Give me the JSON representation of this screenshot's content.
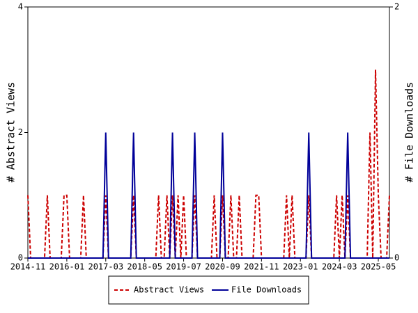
{
  "chart_data": {
    "type": "line",
    "categories": [
      "2014-11",
      null,
      null,
      null,
      null,
      null,
      null,
      null,
      null,
      null,
      null,
      null,
      null,
      null,
      "2016-01",
      null,
      null,
      null,
      null,
      null,
      null,
      null,
      null,
      null,
      null,
      null,
      null,
      null,
      "2017-03",
      null,
      null,
      null,
      null,
      null,
      null,
      null,
      null,
      null,
      null,
      null,
      null,
      null,
      "2018-05",
      null,
      null,
      null,
      null,
      null,
      null,
      null,
      null,
      null,
      null,
      null,
      null,
      null,
      "2019-07",
      null,
      null,
      null,
      null,
      null,
      null,
      null,
      null,
      null,
      null,
      null,
      null,
      null,
      "2020-09",
      null,
      null,
      null,
      null,
      null,
      null,
      null,
      null,
      null,
      null,
      null,
      null,
      null,
      "2021-11",
      null,
      null,
      null,
      null,
      null,
      null,
      null,
      null,
      null,
      null,
      null,
      null,
      null,
      "2023-01",
      null,
      null,
      null,
      null,
      null,
      null,
      null,
      null,
      null,
      null,
      null,
      null,
      null,
      "2024-03",
      null,
      null,
      null,
      null,
      null,
      null,
      null,
      null,
      null,
      null,
      null,
      null,
      null,
      "2025-05",
      null,
      null,
      null,
      null
    ],
    "series": [
      {
        "name": "Abstract Views",
        "color": "#cc0000",
        "dash": true,
        "values": [
          1,
          0,
          0,
          0,
          0,
          0,
          0,
          1,
          0,
          0,
          0,
          0,
          0,
          1,
          1,
          0,
          0,
          0,
          0,
          0,
          1,
          0,
          0,
          0,
          0,
          0,
          0,
          0,
          1,
          0,
          0,
          0,
          0,
          0,
          0,
          0,
          0,
          0,
          1,
          0,
          0,
          0,
          0,
          0,
          0,
          0,
          0,
          1,
          0,
          0,
          1,
          0,
          1,
          0,
          1,
          0,
          1,
          0,
          0,
          0,
          1,
          0,
          0,
          0,
          0,
          0,
          0,
          1,
          0,
          0,
          1,
          0,
          0,
          1,
          0,
          0,
          1,
          0,
          0,
          0,
          0,
          0,
          1,
          1,
          0,
          0,
          0,
          0,
          0,
          0,
          0,
          0,
          0,
          1,
          0,
          1,
          0,
          0,
          0,
          0,
          0,
          1,
          0,
          0,
          0,
          0,
          0,
          0,
          0,
          0,
          0,
          1,
          0,
          1,
          0,
          1,
          0,
          0,
          0,
          0,
          0,
          0,
          0,
          2,
          0,
          3,
          1,
          0,
          0,
          0,
          1
        ]
      },
      {
        "name": "File Downloads",
        "color": "#000099",
        "axis": "y2",
        "values": [
          0,
          0,
          0,
          0,
          0,
          0,
          0,
          0,
          0,
          0,
          0,
          0,
          0,
          0,
          0,
          0,
          0,
          0,
          0,
          0,
          0,
          0,
          0,
          0,
          0,
          0,
          0,
          0,
          1,
          0,
          0,
          0,
          0,
          0,
          0,
          0,
          0,
          0,
          1,
          0,
          0,
          0,
          0,
          0,
          0,
          0,
          0,
          0,
          0,
          0,
          0,
          0,
          1,
          0,
          0,
          0,
          0,
          0,
          0,
          0,
          1,
          0,
          0,
          0,
          0,
          0,
          0,
          0,
          0,
          0,
          1,
          0,
          0,
          0,
          0,
          0,
          0,
          0,
          0,
          0,
          0,
          0,
          0,
          0,
          0,
          0,
          0,
          0,
          0,
          0,
          0,
          0,
          0,
          0,
          0,
          0,
          0,
          0,
          0,
          0,
          0,
          1,
          0,
          0,
          0,
          0,
          0,
          0,
          0,
          0,
          0,
          0,
          0,
          0,
          0,
          1,
          0,
          0,
          0,
          0,
          0,
          0,
          0,
          0,
          0,
          0,
          0,
          0,
          0,
          0,
          0
        ]
      }
    ],
    "y_label": "# Abstract Views",
    "y2_label": "# File Downloads",
    "ylim": [
      0,
      4
    ],
    "yticks": [
      0,
      2,
      4
    ],
    "y2lim": [
      0,
      2
    ],
    "y2ticks": [
      0,
      2
    ]
  }
}
